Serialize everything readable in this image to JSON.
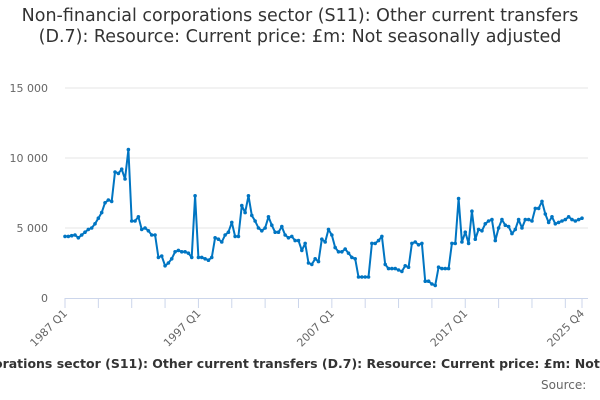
{
  "chart_data": {
    "type": "line",
    "title": "Non-financial corporations sector (S11): Other current transfers (D.7): Resource: Current price: £m: Not seasonally adjusted",
    "caption": "orations sector (S11): Other current transfers (D.7): Resource: Current price: £m: Not",
    "source_label": "Source:",
    "xlabel": "",
    "ylabel": "",
    "x_start": "1987 Q1",
    "x_end": "2025 Q4",
    "x_tick_labels": [
      "1987 Q1",
      "1997 Q1",
      "2007 Q1",
      "2017 Q1",
      "2025 Q4"
    ],
    "x_tick_indices": [
      0,
      40,
      80,
      120,
      155
    ],
    "y_ticks": [
      0,
      5000,
      10000,
      15000
    ],
    "y_tick_labels": [
      "0",
      "5 000",
      "10 000",
      "15 000"
    ],
    "ylim": [
      0,
      15000
    ],
    "grid": true,
    "series_color": "#0075c2",
    "series": [
      {
        "name": "Other current transfers (D.7)",
        "values": [
          4400,
          4400,
          4450,
          4500,
          4300,
          4500,
          4700,
          4900,
          5000,
          5300,
          5700,
          6100,
          6800,
          7000,
          6900,
          9000,
          8900,
          9200,
          8500,
          10600,
          5500,
          5500,
          5800,
          4900,
          5000,
          4800,
          4500,
          4500,
          2900,
          3000,
          2300,
          2500,
          2800,
          3300,
          3400,
          3300,
          3300,
          3200,
          2900,
          7300,
          2900,
          2900,
          2800,
          2700,
          2900,
          4300,
          4200,
          4000,
          4500,
          4700,
          5400,
          4400,
          4400,
          6600,
          6100,
          7300,
          5900,
          5500,
          5000,
          4800,
          5000,
          5800,
          5200,
          4700,
          4700,
          5100,
          4500,
          4300,
          4400,
          4100,
          4100,
          3400,
          3900,
          2500,
          2400,
          2800,
          2600,
          4200,
          4000,
          4900,
          4500,
          3600,
          3300,
          3300,
          3500,
          3200,
          2900,
          2800,
          1500,
          1500,
          1500,
          1500,
          3900,
          3900,
          4100,
          4400,
          2400,
          2100,
          2100,
          2100,
          2000,
          1900,
          2300,
          2200,
          3900,
          4000,
          3800,
          3900,
          1200,
          1200,
          1000,
          900,
          2200,
          2100,
          2100,
          2100,
          3900,
          3900,
          7100,
          4000,
          4700,
          3900,
          6200,
          4200,
          4900,
          4800,
          5300,
          5500,
          5600,
          4100,
          5000,
          5600,
          5200,
          5100,
          4600,
          4900,
          5600,
          5000,
          5600,
          5600,
          5500,
          6400,
          6400,
          6900,
          6000,
          5400,
          5800,
          5300,
          5400,
          5500,
          5600,
          5800,
          5600,
          5500,
          5600,
          5700
        ]
      }
    ]
  }
}
